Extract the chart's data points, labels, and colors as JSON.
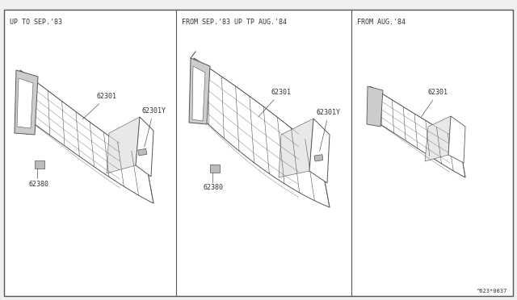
{
  "bg": "#f0f0f0",
  "white": "#ffffff",
  "lc": "#555555",
  "tc": "#333333",
  "gray1": "#999999",
  "gray2": "#bbbbbb",
  "gray3": "#cccccc",
  "panels": [
    {
      "title": "UP TO SEP.'83"
    },
    {
      "title": "FROM SEP.'83 UP TP AUG.'84"
    },
    {
      "title": "FROM AUG.'84"
    }
  ],
  "watermark": "^623*0037",
  "fontsize_title": 6.0,
  "fontsize_label": 6.0
}
